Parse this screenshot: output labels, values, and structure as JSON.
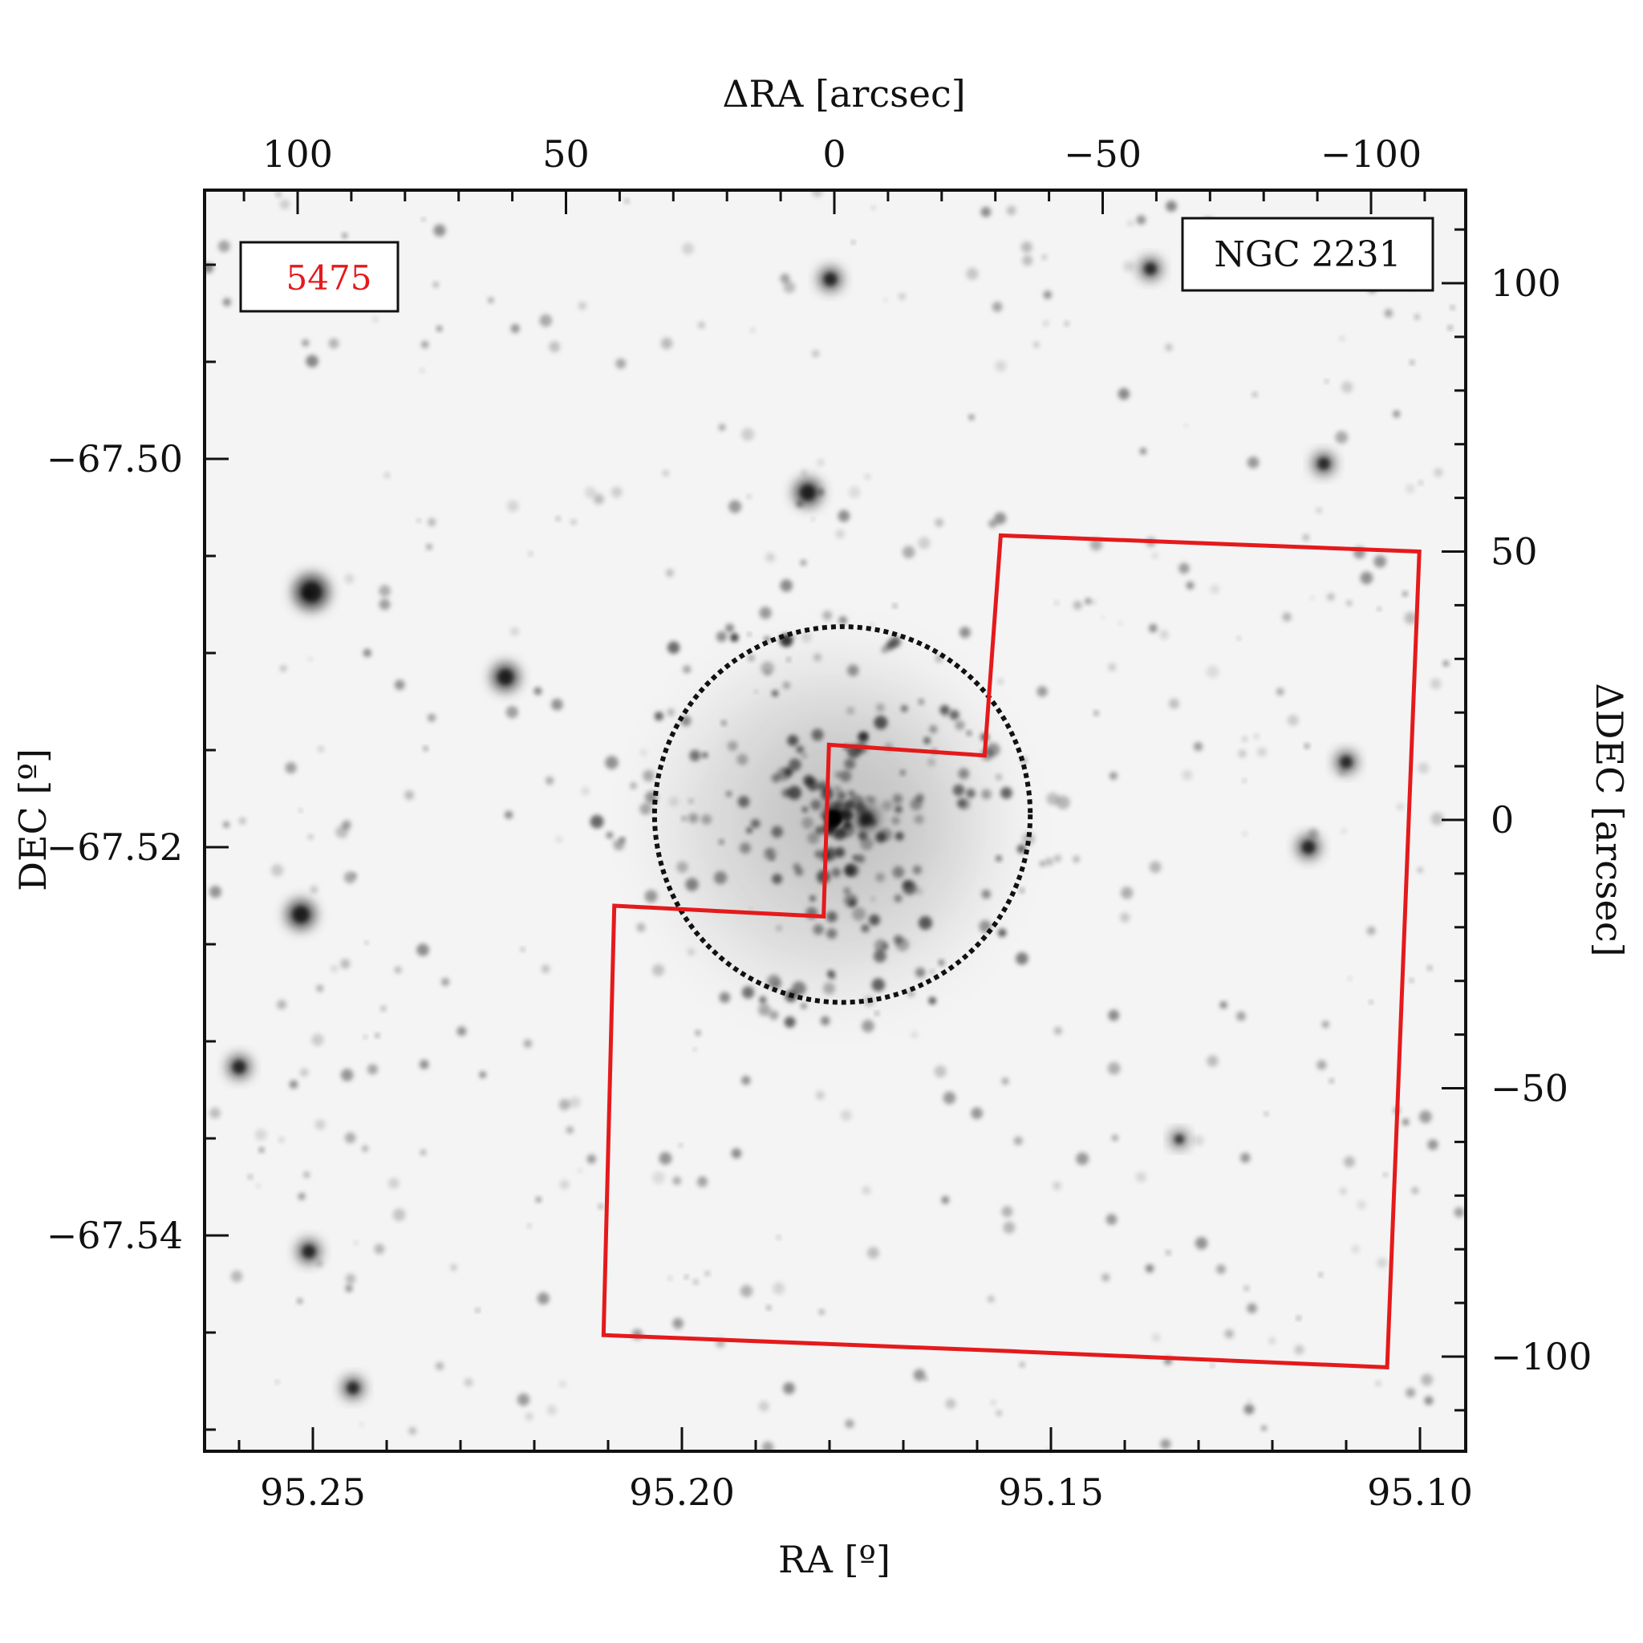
{
  "figure": {
    "object_name": "NGC 2231",
    "field_id": "5475",
    "field_id_color": "#e41a1c",
    "footprint_color": "#e41a1c",
    "circle_color": "#111111",
    "background": "#f4f4f4"
  },
  "axes": {
    "bottom": {
      "label": "RA [º]",
      "ticks": [
        "95.25",
        "95.20",
        "95.15",
        "95.10"
      ],
      "values": [
        95.25,
        95.2,
        95.15,
        95.1
      ]
    },
    "left": {
      "label": "DEC [º]",
      "ticks": [
        "−67.50",
        "−67.52",
        "−67.54"
      ],
      "values": [
        -67.5,
        -67.52,
        -67.54
      ]
    },
    "top": {
      "label": "ΔRA [arcsec]",
      "ticks": [
        "100",
        "50",
        "0",
        "−50",
        "−100"
      ],
      "values": [
        100,
        50,
        0,
        -50,
        -100
      ]
    },
    "right": {
      "label": "ΔDEC [arcsec]",
      "ticks": [
        "100",
        "50",
        "0",
        "−50",
        "−100"
      ],
      "values": [
        100,
        50,
        0,
        -50,
        -100
      ]
    }
  },
  "overlays": {
    "core_radius_arcsec": 35,
    "footprint_arcsec": [
      [
        -31,
        53
      ],
      [
        -109,
        50
      ],
      [
        -103,
        -102
      ],
      [
        -33,
        -99
      ],
      [
        43,
        -96
      ],
      [
        41,
        -16
      ],
      [
        2,
        -18
      ],
      [
        1,
        14
      ],
      [
        -28,
        12
      ]
    ]
  }
}
